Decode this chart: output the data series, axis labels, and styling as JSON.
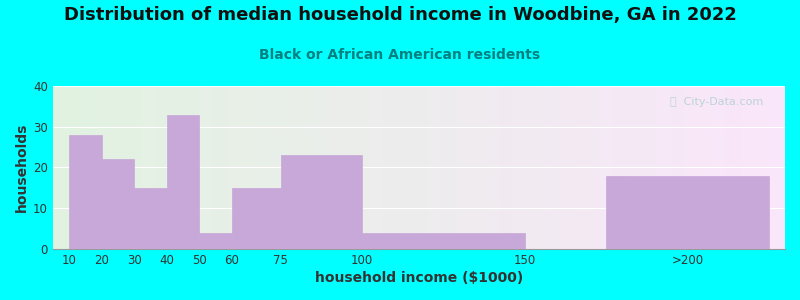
{
  "title": "Distribution of median household income in Woodbine, GA in 2022",
  "subtitle": "Black or African American residents",
  "xlabel": "household income ($1000)",
  "ylabel": "households",
  "background_color": "#00FFFF",
  "bar_color": "#c8a8d8",
  "bar_edge_color": "#b898c8",
  "bar_left_edges": [
    10,
    20,
    30,
    40,
    50,
    60,
    75,
    100,
    150,
    175
  ],
  "bar_widths": [
    10,
    10,
    10,
    10,
    10,
    15,
    25,
    50,
    25,
    50
  ],
  "bar_values": [
    28,
    22,
    15,
    33,
    4,
    15,
    23,
    4,
    0,
    18
  ],
  "xtick_positions": [
    10,
    20,
    30,
    40,
    50,
    60,
    75,
    100,
    150,
    200
  ],
  "xtick_labels": [
    "10",
    "20",
    "30",
    "40",
    "50",
    "60",
    "75",
    "100",
    "150",
    ">200"
  ],
  "xlim": [
    5,
    230
  ],
  "ylim": [
    0,
    40
  ],
  "yticks": [
    0,
    10,
    20,
    30,
    40
  ],
  "title_fontsize": 13,
  "subtitle_fontsize": 10,
  "axis_label_fontsize": 10,
  "watermark_text": "ⓘ  City-Data.com"
}
